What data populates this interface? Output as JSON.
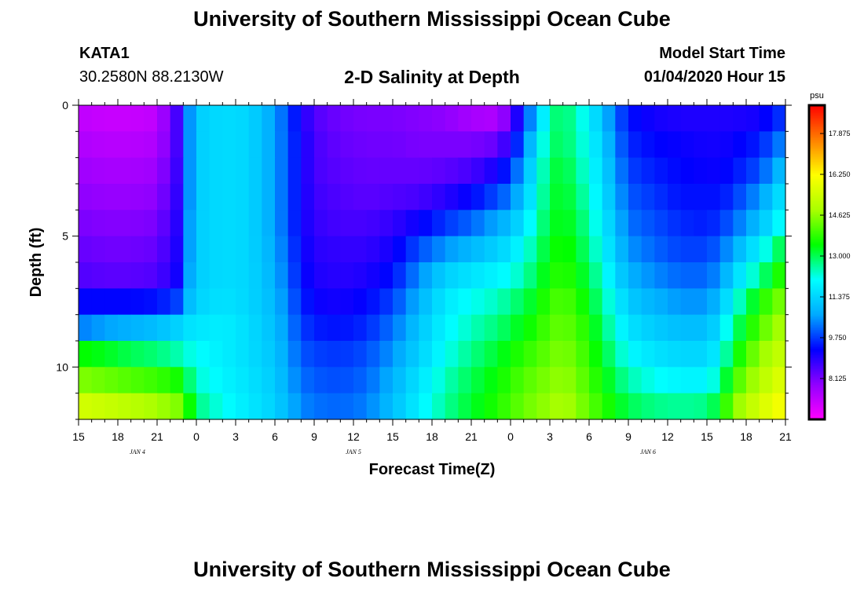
{
  "header": {
    "title": "University of Southern Mississippi Ocean Cube",
    "station": "KATA1",
    "coords": "30.2580N 88.2130W",
    "plot_title": "2-D Salinity at Depth",
    "model_start_label": "Model Start Time",
    "model_start_value": "01/04/2020 Hour 15"
  },
  "footer": {
    "title": "University of Southern Mississippi Ocean Cube"
  },
  "chart_data": {
    "type": "heatmap",
    "title": "2-D Salinity at Depth",
    "xlabel": "Forecast Time(Z)",
    "ylabel": "Depth (ft)",
    "x_ticks": [
      "15",
      "18",
      "21",
      "0",
      "3",
      "6",
      "9",
      "12",
      "15",
      "18",
      "21",
      "0",
      "3",
      "6",
      "9",
      "12",
      "15",
      "18",
      "21"
    ],
    "date_labels": [
      {
        "label": "JAN 4",
        "hour_index": 4.5
      },
      {
        "label": "JAN 5",
        "hour_index": 21
      },
      {
        "label": "JAN 6",
        "hour_index": 43.5
      }
    ],
    "x_range_hours": [
      0,
      54
    ],
    "y_ticks": [
      "0",
      "5",
      "10"
    ],
    "ylim": [
      0,
      12
    ],
    "colorbar": {
      "unit": "psu",
      "range": [
        6.5,
        19.0
      ],
      "ticks": [
        "17.875",
        "16.250",
        "14.625",
        "13.000",
        "11.375",
        "9.750",
        "8.125"
      ],
      "tick_values": [
        17.875,
        16.25,
        14.625,
        13.0,
        11.375,
        9.75,
        8.125
      ],
      "colors": [
        "#ff00ff",
        "#9000ff",
        "#0000ff",
        "#00aaff",
        "#00ffff",
        "#00ff00",
        "#aaff00",
        "#ffff00",
        "#ff8000",
        "#ff0000"
      ]
    },
    "depth_levels_ft": [
      0.5,
      1.5,
      2.5,
      3.5,
      4.5,
      5.5,
      6.5,
      7.5,
      8.5,
      9.5,
      10.5,
      11.5
    ],
    "time_keyframes_hours": [
      0,
      2,
      4,
      6,
      7.5,
      8.5,
      9.5,
      11,
      13,
      15,
      17,
      18,
      20,
      22,
      24,
      26,
      28,
      30,
      32,
      33,
      34,
      35,
      36,
      37,
      38,
      39,
      40,
      41,
      42,
      44,
      46,
      48,
      49,
      50,
      52,
      54
    ],
    "salinity_psu": [
      [
        7.3,
        7.2,
        7.2,
        7.3,
        8.6,
        10.5,
        11.3,
        11.5,
        11.4,
        10.6,
        9.1,
        8.5,
        8.2,
        8.1,
        8.1,
        8.0,
        7.9,
        7.6,
        7.5,
        8.3,
        9.7,
        11.0,
        12.6,
        13.0,
        12.4,
        11.9,
        11.0,
        10.2,
        9.4,
        9.1,
        9.0,
        9.0,
        9.0,
        9.0,
        9.1,
        9.8
      ],
      [
        7.5,
        7.4,
        7.4,
        7.5,
        8.6,
        10.5,
        11.3,
        11.5,
        11.4,
        10.6,
        9.2,
        8.6,
        8.3,
        8.2,
        8.2,
        8.1,
        8.1,
        8.1,
        8.3,
        9.0,
        10.2,
        11.6,
        12.8,
        13.0,
        12.5,
        12.0,
        11.3,
        10.4,
        9.6,
        9.3,
        9.2,
        9.1,
        9.1,
        9.2,
        9.5,
        10.5
      ],
      [
        7.7,
        7.6,
        7.6,
        7.7,
        8.7,
        10.5,
        11.3,
        11.5,
        11.4,
        10.6,
        9.2,
        8.6,
        8.4,
        8.3,
        8.3,
        8.3,
        8.4,
        8.6,
        9.1,
        9.7,
        10.7,
        11.9,
        13.0,
        13.2,
        12.7,
        12.1,
        11.5,
        10.6,
        9.8,
        9.5,
        9.3,
        9.2,
        9.2,
        9.4,
        9.9,
        11.2
      ],
      [
        7.9,
        7.8,
        7.8,
        7.9,
        8.8,
        10.5,
        11.3,
        11.5,
        11.4,
        10.6,
        9.2,
        8.7,
        8.5,
        8.4,
        8.5,
        8.6,
        8.9,
        9.3,
        9.9,
        10.3,
        11.1,
        12.1,
        13.1,
        13.3,
        12.9,
        12.3,
        11.6,
        10.8,
        10.0,
        9.7,
        9.4,
        9.4,
        9.4,
        9.7,
        10.5,
        11.8
      ],
      [
        8.1,
        8.0,
        8.0,
        8.1,
        8.9,
        10.6,
        11.3,
        11.5,
        11.4,
        10.6,
        9.2,
        8.8,
        8.6,
        8.6,
        8.8,
        9.2,
        9.7,
        10.1,
        10.7,
        11.0,
        11.6,
        12.4,
        13.2,
        13.4,
        13.1,
        12.5,
        11.8,
        11.0,
        10.2,
        9.9,
        9.6,
        9.5,
        9.7,
        10.1,
        11.0,
        12.3
      ],
      [
        8.3,
        8.2,
        8.2,
        8.3,
        9.0,
        10.6,
        11.3,
        11.5,
        11.4,
        10.7,
        9.3,
        8.9,
        8.8,
        8.8,
        9.1,
        9.9,
        10.5,
        10.9,
        11.3,
        11.6,
        12.1,
        12.7,
        13.4,
        13.6,
        13.3,
        12.7,
        12.0,
        11.2,
        10.5,
        10.1,
        9.8,
        9.8,
        10.1,
        10.7,
        11.8,
        13.3
      ],
      [
        8.5,
        8.4,
        8.4,
        8.5,
        9.1,
        10.7,
        11.3,
        11.5,
        11.4,
        10.8,
        9.4,
        9.0,
        8.9,
        9.0,
        9.4,
        10.4,
        11.3,
        11.6,
        11.9,
        12.1,
        12.5,
        13.0,
        13.6,
        13.8,
        13.5,
        13.0,
        12.3,
        11.5,
        10.8,
        10.4,
        10.1,
        10.1,
        10.5,
        11.3,
        12.6,
        14.0
      ],
      [
        9.3,
        9.3,
        9.3,
        9.4,
        9.8,
        11.0,
        11.4,
        11.6,
        11.4,
        10.9,
        9.6,
        9.2,
        9.1,
        9.3,
        9.8,
        10.8,
        11.7,
        12.1,
        12.4,
        12.7,
        13.0,
        13.4,
        13.9,
        14.1,
        13.8,
        13.3,
        12.6,
        11.9,
        11.2,
        10.8,
        10.5,
        10.5,
        11.0,
        12.0,
        13.6,
        14.6
      ],
      [
        10.3,
        10.6,
        10.8,
        11.0,
        11.3,
        11.6,
        11.7,
        11.8,
        11.5,
        11.0,
        9.8,
        9.5,
        9.4,
        9.6,
        10.2,
        11.1,
        11.9,
        12.4,
        12.8,
        13.1,
        13.4,
        13.7,
        14.1,
        14.3,
        14.0,
        13.6,
        12.9,
        12.2,
        11.6,
        11.2,
        11.0,
        11.0,
        11.5,
        12.7,
        14.1,
        15.0
      ],
      [
        13.5,
        13.3,
        13.0,
        12.8,
        12.5,
        12.2,
        12.0,
        11.8,
        11.5,
        11.1,
        10.0,
        9.8,
        9.7,
        9.9,
        10.5,
        11.3,
        12.1,
        12.7,
        13.2,
        13.5,
        13.8,
        14.0,
        14.3,
        14.5,
        14.2,
        13.8,
        13.2,
        12.6,
        12.0,
        11.6,
        11.4,
        11.4,
        11.9,
        13.3,
        14.6,
        15.4
      ],
      [
        14.5,
        14.3,
        14.1,
        13.9,
        13.6,
        12.8,
        12.2,
        11.9,
        11.6,
        11.2,
        10.2,
        10.0,
        9.9,
        10.1,
        10.8,
        11.6,
        12.4,
        13.0,
        13.5,
        13.8,
        14.1,
        14.3,
        14.5,
        14.7,
        14.4,
        14.0,
        13.5,
        13.0,
        12.5,
        12.1,
        11.9,
        11.9,
        12.5,
        13.9,
        15.0,
        15.8
      ],
      [
        15.5,
        15.3,
        15.1,
        14.8,
        14.5,
        13.5,
        12.6,
        12.1,
        11.7,
        11.3,
        10.4,
        10.2,
        10.1,
        10.3,
        11.0,
        11.8,
        12.6,
        13.2,
        13.7,
        14.0,
        14.3,
        14.5,
        14.7,
        14.9,
        14.6,
        14.2,
        13.8,
        13.4,
        13.0,
        12.7,
        12.6,
        12.7,
        13.3,
        14.5,
        15.5,
        16.2
      ]
    ]
  }
}
